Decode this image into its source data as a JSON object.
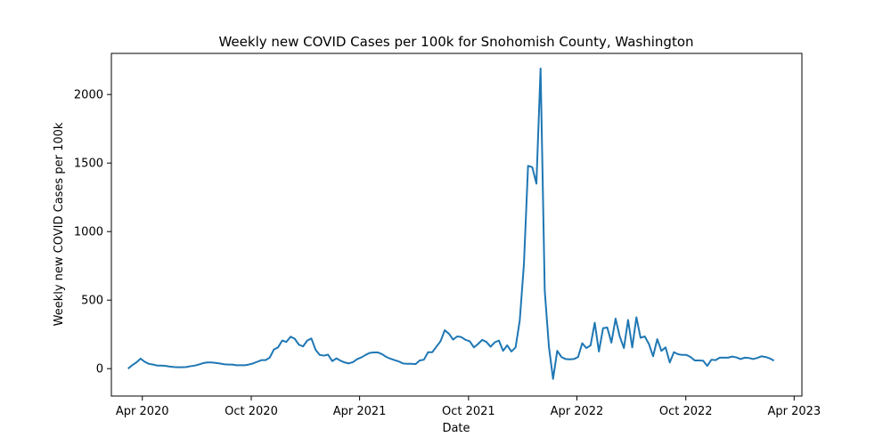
{
  "chart_data": {
    "type": "line",
    "title": "Weekly new COVID Cases per 100k for Snohomish County, Washington",
    "xlabel": "Date",
    "ylabel": "Weekly new COVID Cases per 100k",
    "xlim": [
      "2020-02-09",
      "2023-04-14"
    ],
    "ylim": [
      -200,
      2300
    ],
    "x_ticks": [
      {
        "date": "2020-04-01",
        "label": "Apr 2020"
      },
      {
        "date": "2020-10-01",
        "label": "Oct 2020"
      },
      {
        "date": "2021-04-01",
        "label": "Apr 2021"
      },
      {
        "date": "2021-10-01",
        "label": "Oct 2021"
      },
      {
        "date": "2022-04-01",
        "label": "Apr 2022"
      },
      {
        "date": "2022-10-01",
        "label": "Oct 2022"
      },
      {
        "date": "2023-04-01",
        "label": "Apr 2023"
      }
    ],
    "y_ticks": [
      {
        "value": 0,
        "label": "0"
      },
      {
        "value": 500,
        "label": "500"
      },
      {
        "value": 1000,
        "label": "1000"
      },
      {
        "value": 1500,
        "label": "1500"
      },
      {
        "value": 2000,
        "label": "2000"
      }
    ],
    "grid": false,
    "legend": "none",
    "series": [
      {
        "color": "#1f77b4",
        "points": [
          [
            "2020-03-08",
            0
          ],
          [
            "2020-03-15",
            25
          ],
          [
            "2020-03-22",
            45
          ],
          [
            "2020-03-29",
            73
          ],
          [
            "2020-04-05",
            50
          ],
          [
            "2020-04-12",
            35
          ],
          [
            "2020-04-19",
            30
          ],
          [
            "2020-04-26",
            22
          ],
          [
            "2020-05-03",
            22
          ],
          [
            "2020-05-10",
            20
          ],
          [
            "2020-05-17",
            15
          ],
          [
            "2020-05-24",
            12
          ],
          [
            "2020-05-31",
            10
          ],
          [
            "2020-06-07",
            10
          ],
          [
            "2020-06-14",
            12
          ],
          [
            "2020-06-21",
            18
          ],
          [
            "2020-06-28",
            22
          ],
          [
            "2020-07-05",
            30
          ],
          [
            "2020-07-12",
            40
          ],
          [
            "2020-07-19",
            45
          ],
          [
            "2020-07-26",
            45
          ],
          [
            "2020-08-02",
            42
          ],
          [
            "2020-08-09",
            38
          ],
          [
            "2020-08-16",
            32
          ],
          [
            "2020-08-23",
            30
          ],
          [
            "2020-08-30",
            30
          ],
          [
            "2020-09-06",
            25
          ],
          [
            "2020-09-13",
            25
          ],
          [
            "2020-09-20",
            25
          ],
          [
            "2020-09-27",
            30
          ],
          [
            "2020-10-04",
            38
          ],
          [
            "2020-10-11",
            50
          ],
          [
            "2020-10-18",
            62
          ],
          [
            "2020-10-25",
            62
          ],
          [
            "2020-11-01",
            80
          ],
          [
            "2020-11-08",
            140
          ],
          [
            "2020-11-15",
            155
          ],
          [
            "2020-11-22",
            205
          ],
          [
            "2020-11-29",
            195
          ],
          [
            "2020-12-06",
            233
          ],
          [
            "2020-12-13",
            218
          ],
          [
            "2020-12-20",
            175
          ],
          [
            "2020-12-27",
            162
          ],
          [
            "2021-01-03",
            205
          ],
          [
            "2021-01-10",
            220
          ],
          [
            "2021-01-17",
            138
          ],
          [
            "2021-01-24",
            100
          ],
          [
            "2021-01-31",
            95
          ],
          [
            "2021-02-07",
            102
          ],
          [
            "2021-02-14",
            55
          ],
          [
            "2021-02-21",
            75
          ],
          [
            "2021-02-28",
            58
          ],
          [
            "2021-03-07",
            45
          ],
          [
            "2021-03-14",
            38
          ],
          [
            "2021-03-21",
            48
          ],
          [
            "2021-03-28",
            70
          ],
          [
            "2021-04-04",
            82
          ],
          [
            "2021-04-11",
            100
          ],
          [
            "2021-04-18",
            115
          ],
          [
            "2021-04-25",
            118
          ],
          [
            "2021-05-02",
            118
          ],
          [
            "2021-05-09",
            105
          ],
          [
            "2021-05-16",
            85
          ],
          [
            "2021-05-23",
            72
          ],
          [
            "2021-05-30",
            62
          ],
          [
            "2021-06-06",
            52
          ],
          [
            "2021-06-13",
            38
          ],
          [
            "2021-06-20",
            35
          ],
          [
            "2021-06-27",
            35
          ],
          [
            "2021-07-04",
            33
          ],
          [
            "2021-07-11",
            60
          ],
          [
            "2021-07-18",
            65
          ],
          [
            "2021-07-25",
            120
          ],
          [
            "2021-08-01",
            120
          ],
          [
            "2021-08-08",
            160
          ],
          [
            "2021-08-15",
            200
          ],
          [
            "2021-08-22",
            280
          ],
          [
            "2021-08-29",
            255
          ],
          [
            "2021-09-05",
            212
          ],
          [
            "2021-09-12",
            235
          ],
          [
            "2021-09-19",
            230
          ],
          [
            "2021-09-26",
            210
          ],
          [
            "2021-10-03",
            200
          ],
          [
            "2021-10-10",
            155
          ],
          [
            "2021-10-17",
            180
          ],
          [
            "2021-10-24",
            210
          ],
          [
            "2021-10-31",
            195
          ],
          [
            "2021-11-07",
            160
          ],
          [
            "2021-11-14",
            192
          ],
          [
            "2021-11-21",
            205
          ],
          [
            "2021-11-28",
            130
          ],
          [
            "2021-12-05",
            170
          ],
          [
            "2021-12-12",
            125
          ],
          [
            "2021-12-19",
            155
          ],
          [
            "2021-12-26",
            350
          ],
          [
            "2022-01-02",
            760
          ],
          [
            "2022-01-09",
            1480
          ],
          [
            "2022-01-16",
            1470
          ],
          [
            "2022-01-23",
            1350
          ],
          [
            "2022-01-30",
            2190
          ],
          [
            "2022-02-06",
            570
          ],
          [
            "2022-02-13",
            160
          ],
          [
            "2022-02-20",
            -75
          ],
          [
            "2022-02-27",
            130
          ],
          [
            "2022-03-06",
            85
          ],
          [
            "2022-03-13",
            70
          ],
          [
            "2022-03-20",
            68
          ],
          [
            "2022-03-27",
            70
          ],
          [
            "2022-04-03",
            85
          ],
          [
            "2022-04-10",
            185
          ],
          [
            "2022-04-17",
            150
          ],
          [
            "2022-04-24",
            170
          ],
          [
            "2022-05-01",
            335
          ],
          [
            "2022-05-08",
            125
          ],
          [
            "2022-05-15",
            295
          ],
          [
            "2022-05-22",
            300
          ],
          [
            "2022-05-29",
            190
          ],
          [
            "2022-06-05",
            365
          ],
          [
            "2022-06-12",
            235
          ],
          [
            "2022-06-19",
            150
          ],
          [
            "2022-06-26",
            355
          ],
          [
            "2022-07-03",
            155
          ],
          [
            "2022-07-10",
            375
          ],
          [
            "2022-07-17",
            225
          ],
          [
            "2022-07-24",
            235
          ],
          [
            "2022-07-31",
            180
          ],
          [
            "2022-08-07",
            90
          ],
          [
            "2022-08-14",
            215
          ],
          [
            "2022-08-21",
            130
          ],
          [
            "2022-08-28",
            155
          ],
          [
            "2022-09-04",
            45
          ],
          [
            "2022-09-11",
            120
          ],
          [
            "2022-09-18",
            105
          ],
          [
            "2022-09-25",
            100
          ],
          [
            "2022-10-02",
            100
          ],
          [
            "2022-10-09",
            85
          ],
          [
            "2022-10-16",
            60
          ],
          [
            "2022-10-23",
            60
          ],
          [
            "2022-10-30",
            58
          ],
          [
            "2022-11-06",
            20
          ],
          [
            "2022-11-13",
            65
          ],
          [
            "2022-11-20",
            62
          ],
          [
            "2022-11-27",
            80
          ],
          [
            "2022-12-04",
            80
          ],
          [
            "2022-12-11",
            80
          ],
          [
            "2022-12-18",
            88
          ],
          [
            "2022-12-25",
            82
          ],
          [
            "2023-01-01",
            70
          ],
          [
            "2023-01-08",
            80
          ],
          [
            "2023-01-15",
            78
          ],
          [
            "2023-01-22",
            70
          ],
          [
            "2023-01-29",
            78
          ],
          [
            "2023-02-05",
            90
          ],
          [
            "2023-02-12",
            85
          ],
          [
            "2023-02-19",
            75
          ],
          [
            "2023-02-26",
            58
          ]
        ]
      }
    ]
  }
}
